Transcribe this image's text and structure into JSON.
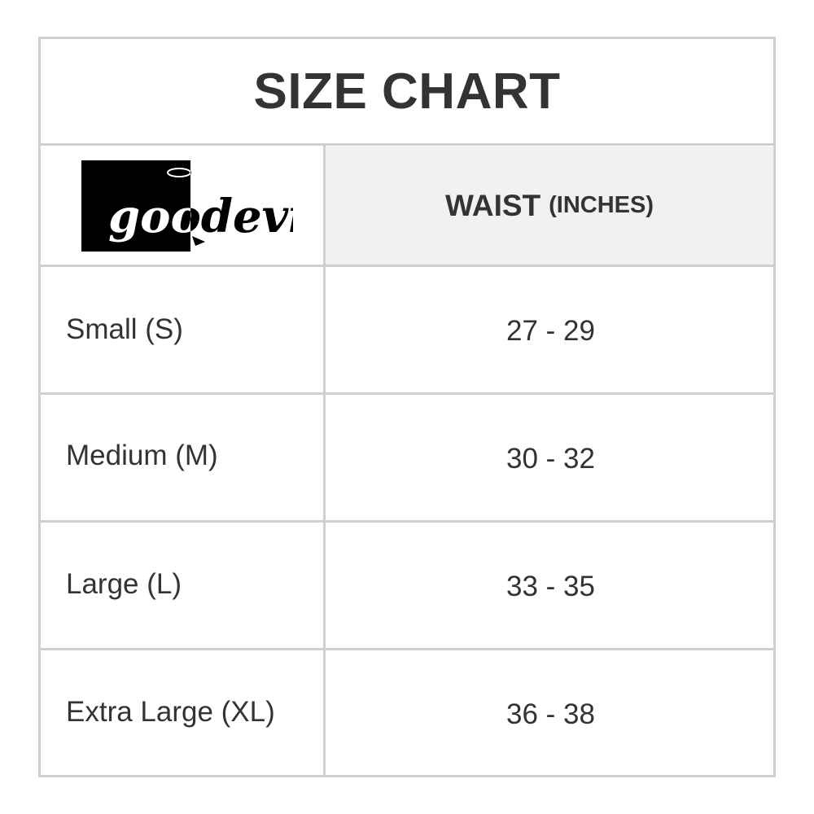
{
  "title": "SIZE CHART",
  "brand": {
    "logo_text": "goodevil"
  },
  "header": {
    "column": "WAIST",
    "unit": "(INCHES)"
  },
  "rows": [
    {
      "size": "Small (S)",
      "waist": "27 - 29"
    },
    {
      "size": "Medium (M)",
      "waist": "30 - 32"
    },
    {
      "size": "Large (L)",
      "waist": "33 - 35"
    },
    {
      "size": "Extra Large (XL)",
      "waist": "36 - 38"
    }
  ],
  "colors": {
    "border": "#cfcfcf",
    "header_bg": "#f1f1f1",
    "text": "#333333"
  }
}
